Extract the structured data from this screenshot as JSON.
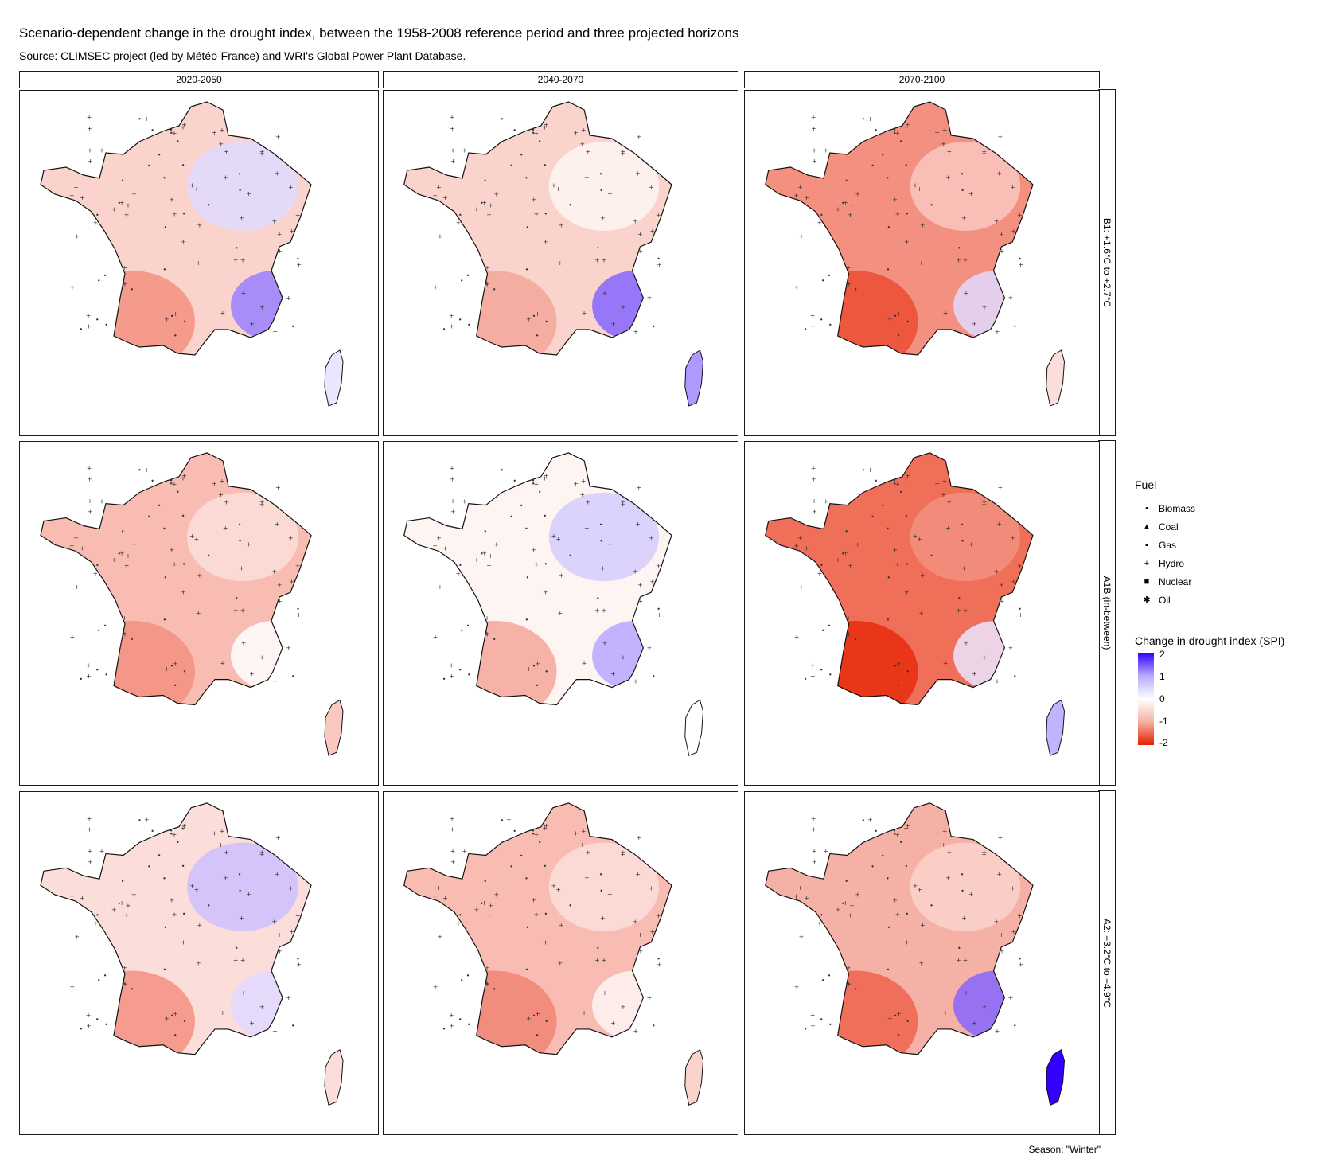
{
  "header": {
    "title": "Scenario-dependent change in the drought index, between the 1958-2008 reference period and three projected horizons",
    "subtitle": "Source: CLIMSEC project (led by Météo-France) and WRI's Global Power Plant Database."
  },
  "facets": {
    "columns": [
      "2020-2050",
      "2040-2070",
      "2070-2100"
    ],
    "rows": [
      "B1: +1.6°C to +2.7°C",
      "A1B (in-between)",
      "A2: +3.2°C to +4.9°C"
    ]
  },
  "legend": {
    "fuel_title": "Fuel",
    "fuel_items": [
      {
        "label": "Biomass",
        "symbol": "•"
      },
      {
        "label": "Coal",
        "symbol": "▲"
      },
      {
        "label": "Gas",
        "symbol": "▪"
      },
      {
        "label": "Hydro",
        "symbol": "+"
      },
      {
        "label": "Nuclear",
        "symbol": "■"
      },
      {
        "label": "Oil",
        "symbol": "✱"
      }
    ],
    "color_title": "Change in drought index (SPI)",
    "color_ticks": [
      "2",
      "1",
      "0",
      "-1",
      "-2"
    ]
  },
  "caption": "Season: \"Winter\"",
  "chart_data": {
    "type": "heatmap",
    "title": "Scenario-dependent change in the drought index, between the 1958-2008 reference period and three projected horizons",
    "subtitle": "Source: CLIMSEC project (led by Météo-France) and WRI's Global Power Plant Database.",
    "colorbar": {
      "label": "Change in drought index (SPI)",
      "range": [
        -2,
        2
      ],
      "low_color": "#e62100",
      "mid_color": "#ffffff",
      "high_color": "#3300ff"
    },
    "point_legend": "Fuel",
    "panels": [
      {
        "horizon": "2020-2050",
        "scenario": "B1: +1.6°C to +2.7°C",
        "typical_change": -0.4,
        "north_east": 0.3,
        "south_east": 1.0,
        "south_west": -1.0,
        "corsica": 0.2
      },
      {
        "horizon": "2040-2070",
        "scenario": "B1: +1.6°C to +2.7°C",
        "typical_change": -0.4,
        "north_east": -0.1,
        "south_east": 1.2,
        "south_west": -0.8,
        "corsica": 0.8
      },
      {
        "horizon": "2070-2100",
        "scenario": "B1: +1.6°C to +2.7°C",
        "typical_change": -1.0,
        "north_east": -0.5,
        "south_east": 0.3,
        "south_west": -1.6,
        "corsica": -0.3
      },
      {
        "horizon": "2020-2050",
        "scenario": "A1B (in-between)",
        "typical_change": -0.6,
        "north_east": -0.3,
        "south_east": 0.0,
        "south_west": -1.0,
        "corsica": -0.5
      },
      {
        "horizon": "2040-2070",
        "scenario": "A1B (in-between)",
        "typical_change": -0.1,
        "north_east": 0.4,
        "south_east": 0.7,
        "south_west": -0.8,
        "corsica": 0.0
      },
      {
        "horizon": "2070-2100",
        "scenario": "A1B (in-between)",
        "typical_change": -1.3,
        "north_east": -1.0,
        "south_east": 0.2,
        "south_west": -1.9,
        "corsica": 0.6
      },
      {
        "horizon": "2020-2050",
        "scenario": "A2: +3.2°C to +4.9°C",
        "typical_change": -0.3,
        "north_east": 0.5,
        "south_east": 0.3,
        "south_west": -1.0,
        "corsica": -0.3
      },
      {
        "horizon": "2040-2070",
        "scenario": "A2: +3.2°C to +4.9°C",
        "typical_change": -0.6,
        "north_east": -0.3,
        "south_east": -0.1,
        "south_west": -1.1,
        "corsica": -0.4
      },
      {
        "horizon": "2070-2100",
        "scenario": "A2: +3.2°C to +4.9°C",
        "typical_change": -0.7,
        "north_east": -0.4,
        "south_east": 1.2,
        "south_west": -1.4,
        "corsica": 2.0
      }
    ]
  }
}
